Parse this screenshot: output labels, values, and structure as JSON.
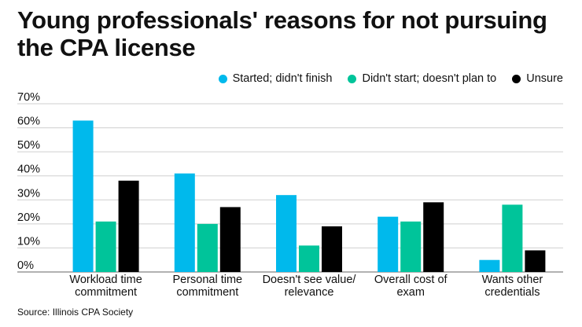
{
  "chart_data": {
    "type": "bar",
    "title": "Young professionals' reasons for not pursuing the CPA license",
    "categories": [
      [
        "Workload time",
        "commitment"
      ],
      [
        "Personal time",
        "commitment"
      ],
      [
        "Doesn't see value/",
        "relevance"
      ],
      [
        "Overall cost of",
        "exam"
      ],
      [
        "Wants other",
        "credentials"
      ]
    ],
    "series": [
      {
        "name": "Started; didn't finish",
        "color": "#00b9ec",
        "values": [
          63,
          41,
          32,
          23,
          5
        ]
      },
      {
        "name": "Didn't start; doesn't plan to",
        "color": "#00c49a",
        "values": [
          21,
          20,
          11,
          21,
          28
        ]
      },
      {
        "name": "Unsure",
        "color": "#000000",
        "values": [
          38,
          27,
          19,
          29,
          9
        ]
      }
    ],
    "yticks": [
      "0%",
      "10%",
      "20%",
      "30%",
      "40%",
      "50%",
      "60%",
      "70%"
    ],
    "ylim": [
      0,
      70
    ],
    "grid": true,
    "legend_position": "top-right"
  },
  "source": "Source: Illinois CPA Society"
}
